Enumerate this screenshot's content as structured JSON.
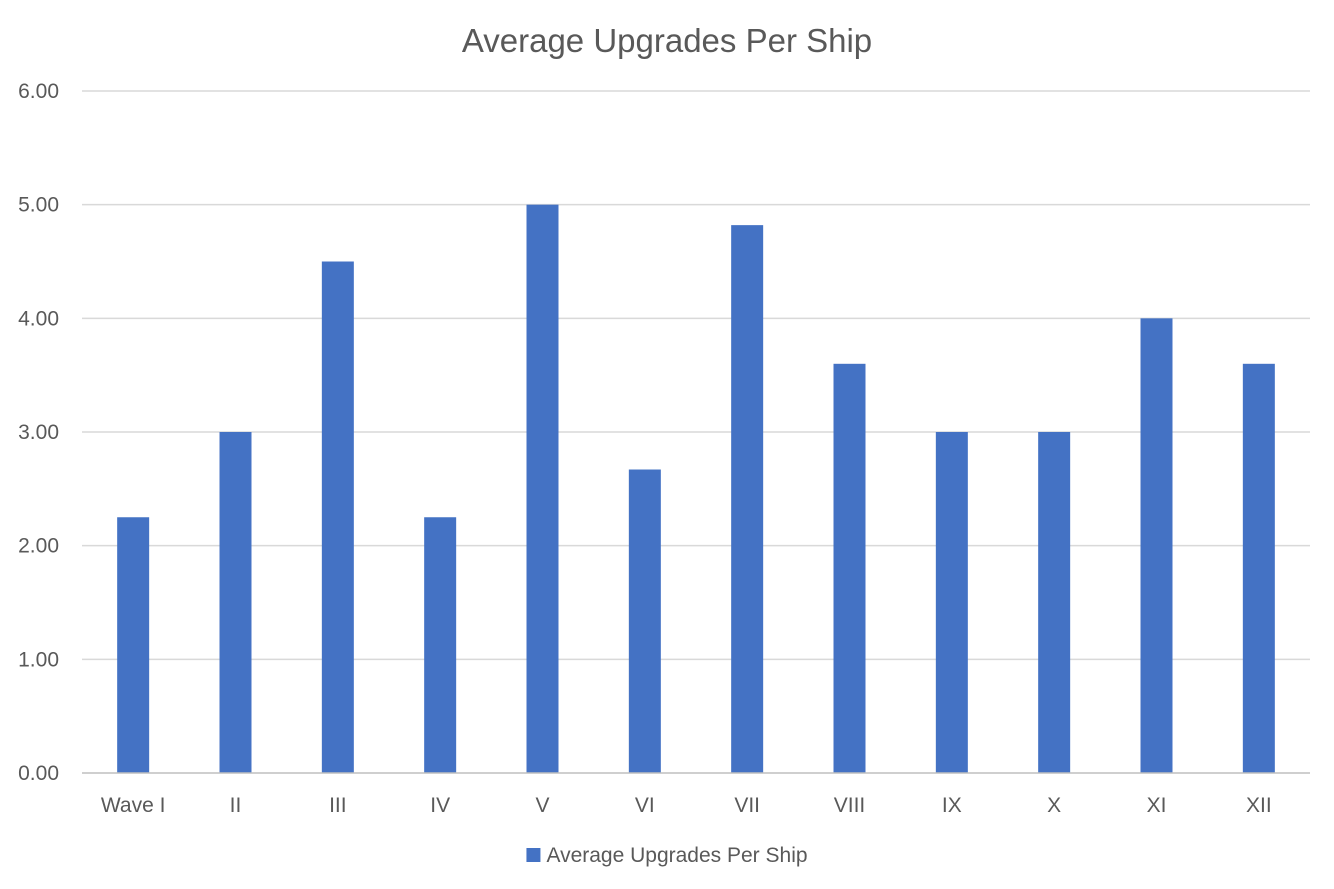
{
  "chart_data": {
    "type": "bar",
    "title": "Average Upgrades Per Ship",
    "xlabel": "",
    "ylabel": "",
    "categories": [
      "Wave I",
      "II",
      "III",
      "IV",
      "V",
      "VI",
      "VII",
      "VIII",
      "IX",
      "X",
      "XI",
      "XII"
    ],
    "series": [
      {
        "name": "Average Upgrades Per Ship",
        "color": "#4472c4",
        "values": [
          2.25,
          3.0,
          4.5,
          2.25,
          5.0,
          2.67,
          4.82,
          3.6,
          3.0,
          3.0,
          4.0,
          3.6
        ]
      }
    ],
    "ylim": [
      0,
      6
    ],
    "yticks": [
      "0.00",
      "1.00",
      "2.00",
      "3.00",
      "4.00",
      "5.00",
      "6.00"
    ],
    "grid": true,
    "legend_position": "bottom"
  }
}
